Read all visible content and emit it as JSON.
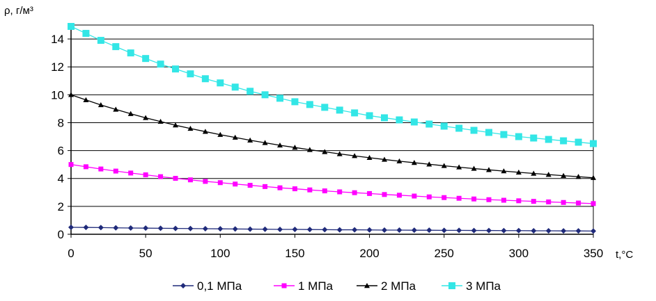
{
  "chart_data": {
    "type": "line",
    "ylabel": "ρ, г/м³",
    "xlabel": "t,°C",
    "xlim": [
      0,
      350
    ],
    "ylim": [
      0,
      15
    ],
    "xticks": [
      0,
      50,
      100,
      150,
      200,
      250,
      300,
      350
    ],
    "yticks": [
      0,
      2,
      4,
      6,
      8,
      10,
      12,
      14
    ],
    "grid": "horizontal",
    "legend_position": "bottom",
    "x": [
      0,
      10,
      20,
      30,
      40,
      50,
      60,
      70,
      80,
      90,
      100,
      110,
      120,
      130,
      140,
      150,
      160,
      170,
      180,
      190,
      200,
      210,
      220,
      230,
      240,
      250,
      260,
      270,
      280,
      290,
      300,
      310,
      320,
      330,
      340,
      350
    ],
    "series": [
      {
        "name": "0,1 МПа",
        "color": "#1f2a7a",
        "marker": "diamond",
        "values": [
          0.5,
          0.49,
          0.48,
          0.46,
          0.45,
          0.44,
          0.43,
          0.42,
          0.41,
          0.4,
          0.39,
          0.38,
          0.37,
          0.36,
          0.35,
          0.35,
          0.34,
          0.33,
          0.32,
          0.32,
          0.31,
          0.3,
          0.3,
          0.29,
          0.29,
          0.28,
          0.28,
          0.27,
          0.27,
          0.26,
          0.26,
          0.25,
          0.25,
          0.24,
          0.24,
          0.23
        ]
      },
      {
        "name": "1 МПа",
        "color": "#ff00ff",
        "marker": "square",
        "values": [
          5.0,
          4.84,
          4.68,
          4.53,
          4.39,
          4.26,
          4.13,
          4.01,
          3.9,
          3.79,
          3.7,
          3.6,
          3.51,
          3.42,
          3.33,
          3.26,
          3.18,
          3.11,
          3.04,
          2.98,
          2.92,
          2.85,
          2.8,
          2.74,
          2.68,
          2.63,
          2.58,
          2.53,
          2.48,
          2.44,
          2.4,
          2.36,
          2.32,
          2.28,
          2.24,
          2.2
        ]
      },
      {
        "name": "2 МПа",
        "color": "#000000",
        "marker": "triangle",
        "values": [
          10.0,
          9.63,
          9.27,
          8.95,
          8.64,
          8.35,
          8.08,
          7.82,
          7.58,
          7.36,
          7.14,
          6.94,
          6.74,
          6.56,
          6.38,
          6.22,
          6.06,
          5.91,
          5.76,
          5.62,
          5.49,
          5.36,
          5.24,
          5.13,
          5.02,
          4.91,
          4.81,
          4.71,
          4.62,
          4.53,
          4.44,
          4.36,
          4.28,
          4.2,
          4.13,
          4.05
        ]
      },
      {
        "name": "3 МПа",
        "color": "#33e6e6",
        "marker": "square-large",
        "values": [
          14.9,
          14.4,
          13.9,
          13.45,
          13.0,
          12.6,
          12.2,
          11.85,
          11.5,
          11.15,
          10.85,
          10.55,
          10.25,
          10.0,
          9.75,
          9.5,
          9.3,
          9.1,
          8.9,
          8.7,
          8.5,
          8.35,
          8.2,
          8.05,
          7.9,
          7.75,
          7.6,
          7.45,
          7.3,
          7.15,
          7.0,
          6.9,
          6.8,
          6.7,
          6.6,
          6.5
        ]
      }
    ]
  }
}
